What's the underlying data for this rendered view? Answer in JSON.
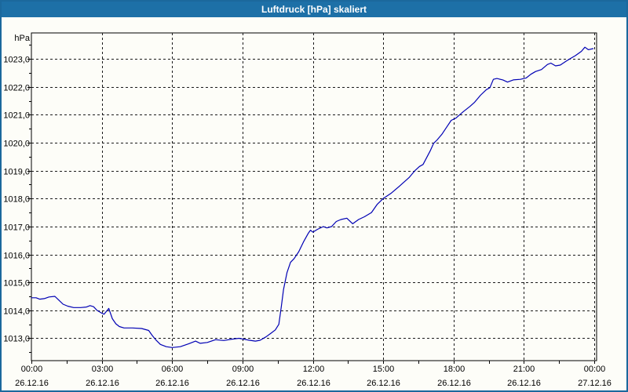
{
  "window": {
    "title": "Luftdruck [hPa] skaliert"
  },
  "colors": {
    "window_border": "#1b689d",
    "titlebar_bg": "#1d70a7",
    "titlebar_text": "#ffffff",
    "content_bg": "#fdfdf8",
    "grid": "#1a1a1a",
    "axis": "#000000",
    "tick_text": "#000000",
    "line": "#0000b4"
  },
  "chart_data": {
    "type": "line",
    "title": "Luftdruck [hPa] skaliert",
    "ylabel": "hPa",
    "xlabel": "",
    "ylim": [
      1012.2,
      1023.93
    ],
    "xlim_hours": [
      0,
      24
    ],
    "grid": "dashed",
    "legend": "none",
    "y_minor_step": 0.5,
    "x_minor_step_hours": 1.5,
    "y_ticks": [
      {
        "value": 1013,
        "label": "1013,0"
      },
      {
        "value": 1014,
        "label": "1014,0"
      },
      {
        "value": 1015,
        "label": "1015,0"
      },
      {
        "value": 1016,
        "label": "1016,0"
      },
      {
        "value": 1017,
        "label": "1017,0"
      },
      {
        "value": 1018,
        "label": "1018,0"
      },
      {
        "value": 1019,
        "label": "1019,0"
      },
      {
        "value": 1020,
        "label": "1020,0"
      },
      {
        "value": 1021,
        "label": "1021,0"
      },
      {
        "value": 1022,
        "label": "1022,0"
      },
      {
        "value": 1023,
        "label": "1023,0"
      }
    ],
    "x_ticks": [
      {
        "hours": 0,
        "time": "00:00",
        "date": "26.12.16"
      },
      {
        "hours": 3,
        "time": "03:00",
        "date": "26.12.16"
      },
      {
        "hours": 6,
        "time": "06:00",
        "date": "26.12.16"
      },
      {
        "hours": 9,
        "time": "09:00",
        "date": "26.12.16"
      },
      {
        "hours": 12,
        "time": "12:00",
        "date": "26.12.16"
      },
      {
        "hours": 15,
        "time": "15:00",
        "date": "26.12.16"
      },
      {
        "hours": 18,
        "time": "18:00",
        "date": "26.12.16"
      },
      {
        "hours": 21,
        "time": "21:00",
        "date": "26.12.16"
      },
      {
        "hours": 24,
        "time": "00:00",
        "date": "27.12.16"
      }
    ],
    "series": [
      {
        "name": "Luftdruck [hPa]",
        "points": [
          [
            0.0,
            1014.45
          ],
          [
            0.2,
            1014.45
          ],
          [
            0.35,
            1014.4
          ],
          [
            0.55,
            1014.42
          ],
          [
            0.75,
            1014.48
          ],
          [
            1.0,
            1014.5
          ],
          [
            1.15,
            1014.38
          ],
          [
            1.35,
            1014.22
          ],
          [
            1.55,
            1014.15
          ],
          [
            1.8,
            1014.1
          ],
          [
            2.1,
            1014.1
          ],
          [
            2.35,
            1014.12
          ],
          [
            2.5,
            1014.17
          ],
          [
            2.65,
            1014.13
          ],
          [
            2.8,
            1014.0
          ],
          [
            3.0,
            1013.9
          ],
          [
            3.1,
            1013.86
          ],
          [
            3.3,
            1014.07
          ],
          [
            3.45,
            1013.7
          ],
          [
            3.6,
            1013.52
          ],
          [
            3.75,
            1013.42
          ],
          [
            3.95,
            1013.37
          ],
          [
            4.3,
            1013.37
          ],
          [
            4.7,
            1013.35
          ],
          [
            5.0,
            1013.28
          ],
          [
            5.15,
            1013.1
          ],
          [
            5.3,
            1012.95
          ],
          [
            5.5,
            1012.78
          ],
          [
            5.75,
            1012.7
          ],
          [
            6.0,
            1012.67
          ],
          [
            6.35,
            1012.7
          ],
          [
            6.7,
            1012.8
          ],
          [
            7.0,
            1012.9
          ],
          [
            7.2,
            1012.82
          ],
          [
            7.5,
            1012.85
          ],
          [
            7.85,
            1012.95
          ],
          [
            8.2,
            1012.92
          ],
          [
            8.55,
            1012.97
          ],
          [
            8.85,
            1013.0
          ],
          [
            9.05,
            1012.97
          ],
          [
            9.3,
            1012.93
          ],
          [
            9.55,
            1012.9
          ],
          [
            9.75,
            1012.93
          ],
          [
            10.0,
            1013.05
          ],
          [
            10.2,
            1013.17
          ],
          [
            10.4,
            1013.3
          ],
          [
            10.55,
            1013.5
          ],
          [
            10.65,
            1014.1
          ],
          [
            10.75,
            1014.75
          ],
          [
            10.9,
            1015.35
          ],
          [
            11.05,
            1015.72
          ],
          [
            11.2,
            1015.85
          ],
          [
            11.4,
            1016.1
          ],
          [
            11.6,
            1016.45
          ],
          [
            11.8,
            1016.75
          ],
          [
            11.9,
            1016.87
          ],
          [
            12.0,
            1016.8
          ],
          [
            12.2,
            1016.9
          ],
          [
            12.45,
            1017.0
          ],
          [
            12.6,
            1016.95
          ],
          [
            12.8,
            1017.0
          ],
          [
            13.0,
            1017.18
          ],
          [
            13.2,
            1017.25
          ],
          [
            13.45,
            1017.3
          ],
          [
            13.7,
            1017.1
          ],
          [
            13.95,
            1017.25
          ],
          [
            14.2,
            1017.35
          ],
          [
            14.5,
            1017.5
          ],
          [
            14.75,
            1017.8
          ],
          [
            15.0,
            1018.0
          ],
          [
            15.35,
            1018.2
          ],
          [
            15.7,
            1018.45
          ],
          [
            16.1,
            1018.75
          ],
          [
            16.35,
            1019.0
          ],
          [
            16.55,
            1019.15
          ],
          [
            16.7,
            1019.22
          ],
          [
            17.0,
            1019.7
          ],
          [
            17.15,
            1019.98
          ],
          [
            17.3,
            1020.1
          ],
          [
            17.5,
            1020.3
          ],
          [
            17.7,
            1020.55
          ],
          [
            17.9,
            1020.8
          ],
          [
            18.1,
            1020.88
          ],
          [
            18.4,
            1021.1
          ],
          [
            18.7,
            1021.3
          ],
          [
            18.9,
            1021.45
          ],
          [
            19.15,
            1021.7
          ],
          [
            19.4,
            1021.9
          ],
          [
            19.55,
            1021.97
          ],
          [
            19.7,
            1022.27
          ],
          [
            19.85,
            1022.3
          ],
          [
            20.1,
            1022.25
          ],
          [
            20.3,
            1022.17
          ],
          [
            20.55,
            1022.25
          ],
          [
            20.85,
            1022.27
          ],
          [
            21.1,
            1022.32
          ],
          [
            21.3,
            1022.45
          ],
          [
            21.5,
            1022.55
          ],
          [
            21.75,
            1022.62
          ],
          [
            22.0,
            1022.8
          ],
          [
            22.15,
            1022.85
          ],
          [
            22.35,
            1022.75
          ],
          [
            22.55,
            1022.78
          ],
          [
            22.8,
            1022.92
          ],
          [
            23.0,
            1023.02
          ],
          [
            23.2,
            1023.12
          ],
          [
            23.45,
            1023.27
          ],
          [
            23.6,
            1023.42
          ],
          [
            23.75,
            1023.33
          ],
          [
            23.95,
            1023.37
          ]
        ]
      }
    ]
  }
}
